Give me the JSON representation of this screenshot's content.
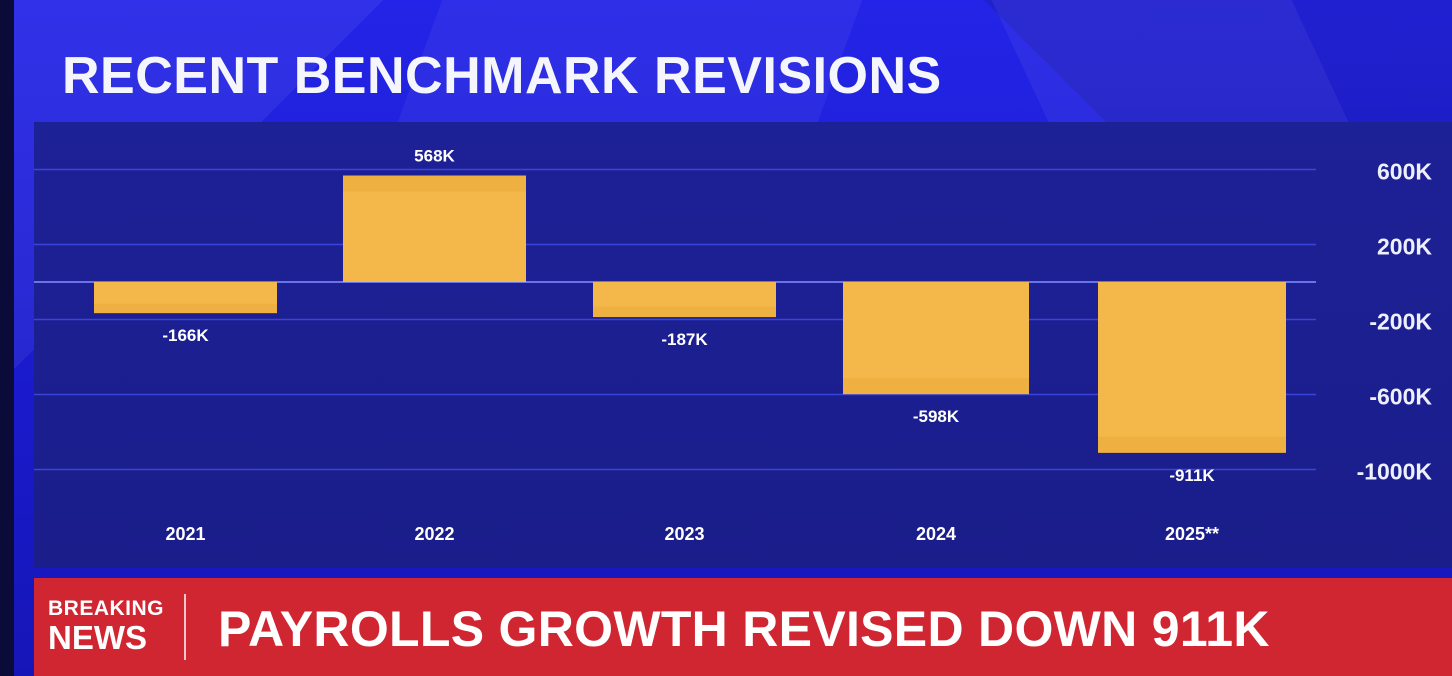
{
  "title": "RECENT BENCHMARK REVISIONS",
  "ticker": {
    "badge_line1": "BREAKING",
    "badge_line2": "NEWS",
    "headline": "PAYROLLS GROWTH REVISED DOWN 911K"
  },
  "colors": {
    "background": "#1e1fd6",
    "panel": "#1d2196",
    "bar": "#f3b849",
    "ticker": "#d02632",
    "text": "#ffffff"
  },
  "chart_data": {
    "type": "bar",
    "title": "RECENT BENCHMARK REVISIONS",
    "categories": [
      "2021",
      "2022",
      "2023",
      "2024",
      "2025**"
    ],
    "values": [
      -166,
      568,
      -187,
      -598,
      -911
    ],
    "data_labels": [
      "-166K",
      "568K",
      "-187K",
      "-598K",
      "-911K"
    ],
    "unit": "K",
    "y_ticks": [
      600,
      200,
      -200,
      -600,
      -1000
    ],
    "y_tick_labels": [
      "600K",
      "200K",
      "-200K",
      "-600K",
      "-1000K"
    ],
    "ylim": [
      -1000,
      600
    ],
    "y_axis_side": "right",
    "grid": true
  }
}
